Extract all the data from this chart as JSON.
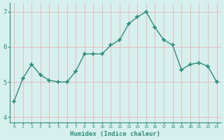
{
  "x": [
    0,
    1,
    2,
    3,
    4,
    5,
    6,
    7,
    8,
    9,
    10,
    11,
    12,
    13,
    14,
    15,
    16,
    17,
    18,
    19,
    20,
    21,
    22,
    23
  ],
  "y": [
    4.45,
    5.1,
    5.5,
    5.2,
    5.05,
    5.0,
    5.0,
    5.3,
    5.8,
    5.8,
    5.8,
    6.05,
    6.2,
    6.65,
    6.85,
    7.0,
    6.55,
    6.2,
    6.05,
    5.35,
    5.5,
    5.55,
    5.45,
    5.0
  ],
  "line_color": "#2e8b7a",
  "marker": "+",
  "marker_size": 4,
  "linewidth": 1.0,
  "xlabel": "Humidex (Indice chaleur)",
  "xlim": [
    -0.5,
    23.5
  ],
  "ylim": [
    3.85,
    7.25
  ],
  "yticks": [
    4,
    5,
    6,
    7
  ],
  "xticks": [
    0,
    1,
    2,
    3,
    4,
    5,
    6,
    7,
    8,
    9,
    10,
    11,
    12,
    13,
    14,
    15,
    16,
    17,
    18,
    19,
    20,
    21,
    22,
    23
  ],
  "bg_color": "#d6f0ee",
  "grid_color": "#e8b4b8",
  "axes_color": "#2e8b7a",
  "tick_color": "#2e8b7a",
  "label_color": "#2e8b7a"
}
